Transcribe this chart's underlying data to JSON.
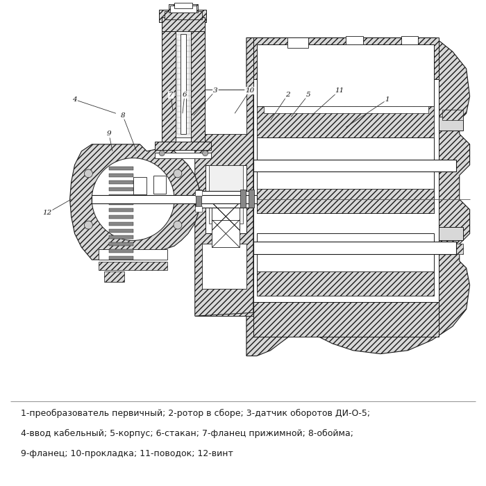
{
  "background_color": "#ffffff",
  "figure_width": 7.0,
  "figure_height": 7.0,
  "dpi": 100,
  "legend_text_line1": "1-преобразователь первичный; 2-ротор в сборе; 3-датчик оборотов ДИ-О-5;",
  "legend_text_line2": "4-ввод кабельный; 5-корпус; 6-стакан; 7-фланец прижимной; 8-обойма;",
  "legend_text_line3": "9-фланец; 10-прокладка; 11-поводок; 12-винт",
  "legend_fontsize": 9.0,
  "legend_color": "#1a1a1a",
  "line_color": "#1a1a1a",
  "hatch_fc": "#d8d8d8",
  "white_fc": "#ffffff",
  "light_fc": "#f0f0f0"
}
